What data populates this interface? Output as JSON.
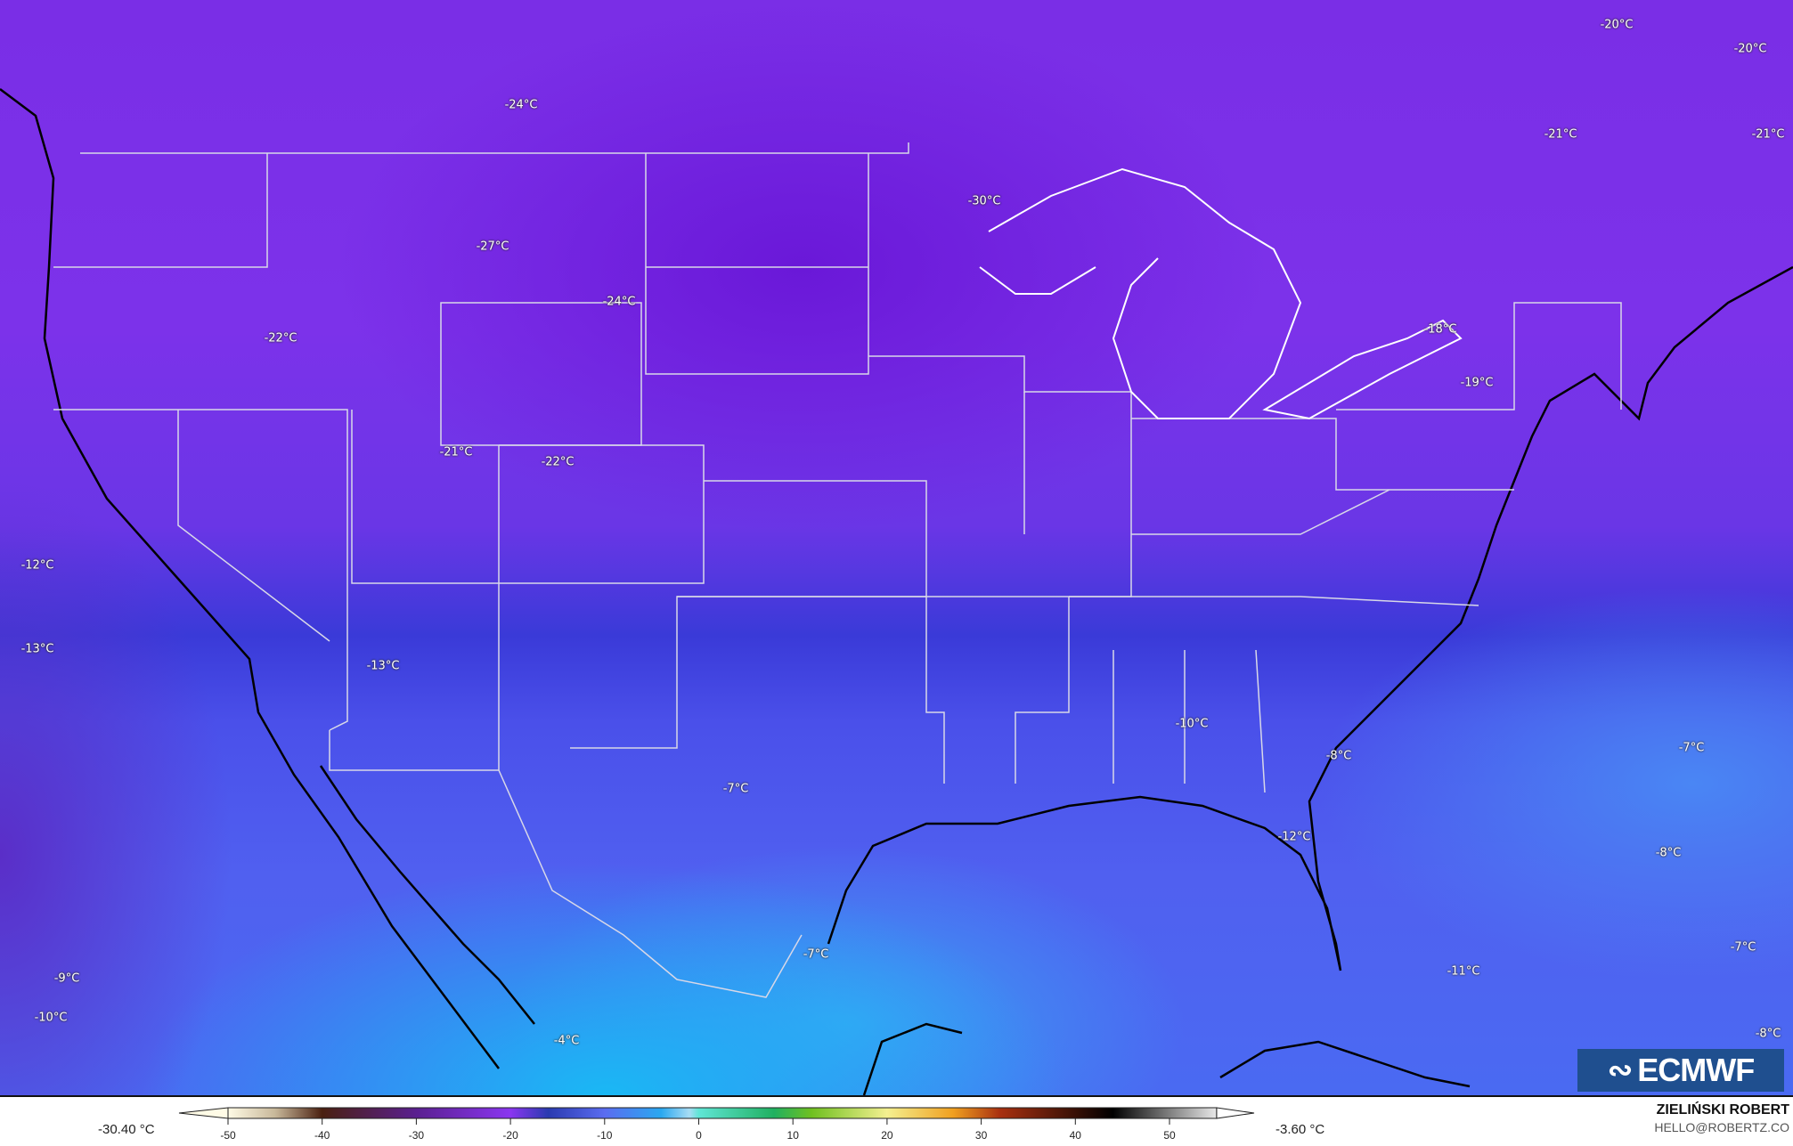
{
  "map": {
    "variable_unit": "°C",
    "labels": [
      "-24°C",
      "-27°C",
      "-24°C",
      "-22°C",
      "-30°C",
      "-21°C",
      "-22°C",
      "-18°C",
      "-19°C",
      "-20°C",
      "-20°C",
      "-21°C",
      "-21°C",
      "-12°C",
      "-13°C",
      "-13°C",
      "-10°C",
      "-8°C",
      "-7°C",
      "-7°C",
      "-12°C",
      "-8°C",
      "-7°C",
      "-7°C",
      "-11°C",
      "-9°C",
      "-10°C",
      "-4°C",
      "-8°C"
    ],
    "colors": {
      "north": "#7a2ee6",
      "band": "#3a3ad8",
      "south": "#4a6af2",
      "mexico": "#1ab8f4"
    }
  },
  "logo": {
    "text": "ECMWF"
  },
  "legend": {
    "min_label": "-30.40 °C",
    "max_label": "-3.60 °C",
    "ticks": [
      "-50",
      "-40",
      "-30",
      "-20",
      "-10",
      "0",
      "10",
      "20",
      "30",
      "40",
      "50"
    ],
    "range": [
      -50,
      55
    ],
    "colormap": [
      [
        -50,
        "#fffbe6"
      ],
      [
        -45,
        "#c8b89a"
      ],
      [
        -40,
        "#4a2010"
      ],
      [
        -30,
        "#5a2090"
      ],
      [
        -20,
        "#8a36f0"
      ],
      [
        -16,
        "#2a3ab0"
      ],
      [
        -10,
        "#5a6cf0"
      ],
      [
        -4,
        "#2aa8f0"
      ],
      [
        -1,
        "#a8dcf4"
      ],
      [
        0,
        "#60e6d6"
      ],
      [
        8,
        "#20b060"
      ],
      [
        12,
        "#70c020"
      ],
      [
        20,
        "#f4f090"
      ],
      [
        27,
        "#f0a020"
      ],
      [
        32,
        "#a83010"
      ],
      [
        44,
        "#000000"
      ],
      [
        55,
        "#e8e8e8"
      ]
    ]
  },
  "author": {
    "name": "ZIELIŃSKI ROBERT",
    "email": "HELLO@ROBERTZ.CO"
  }
}
